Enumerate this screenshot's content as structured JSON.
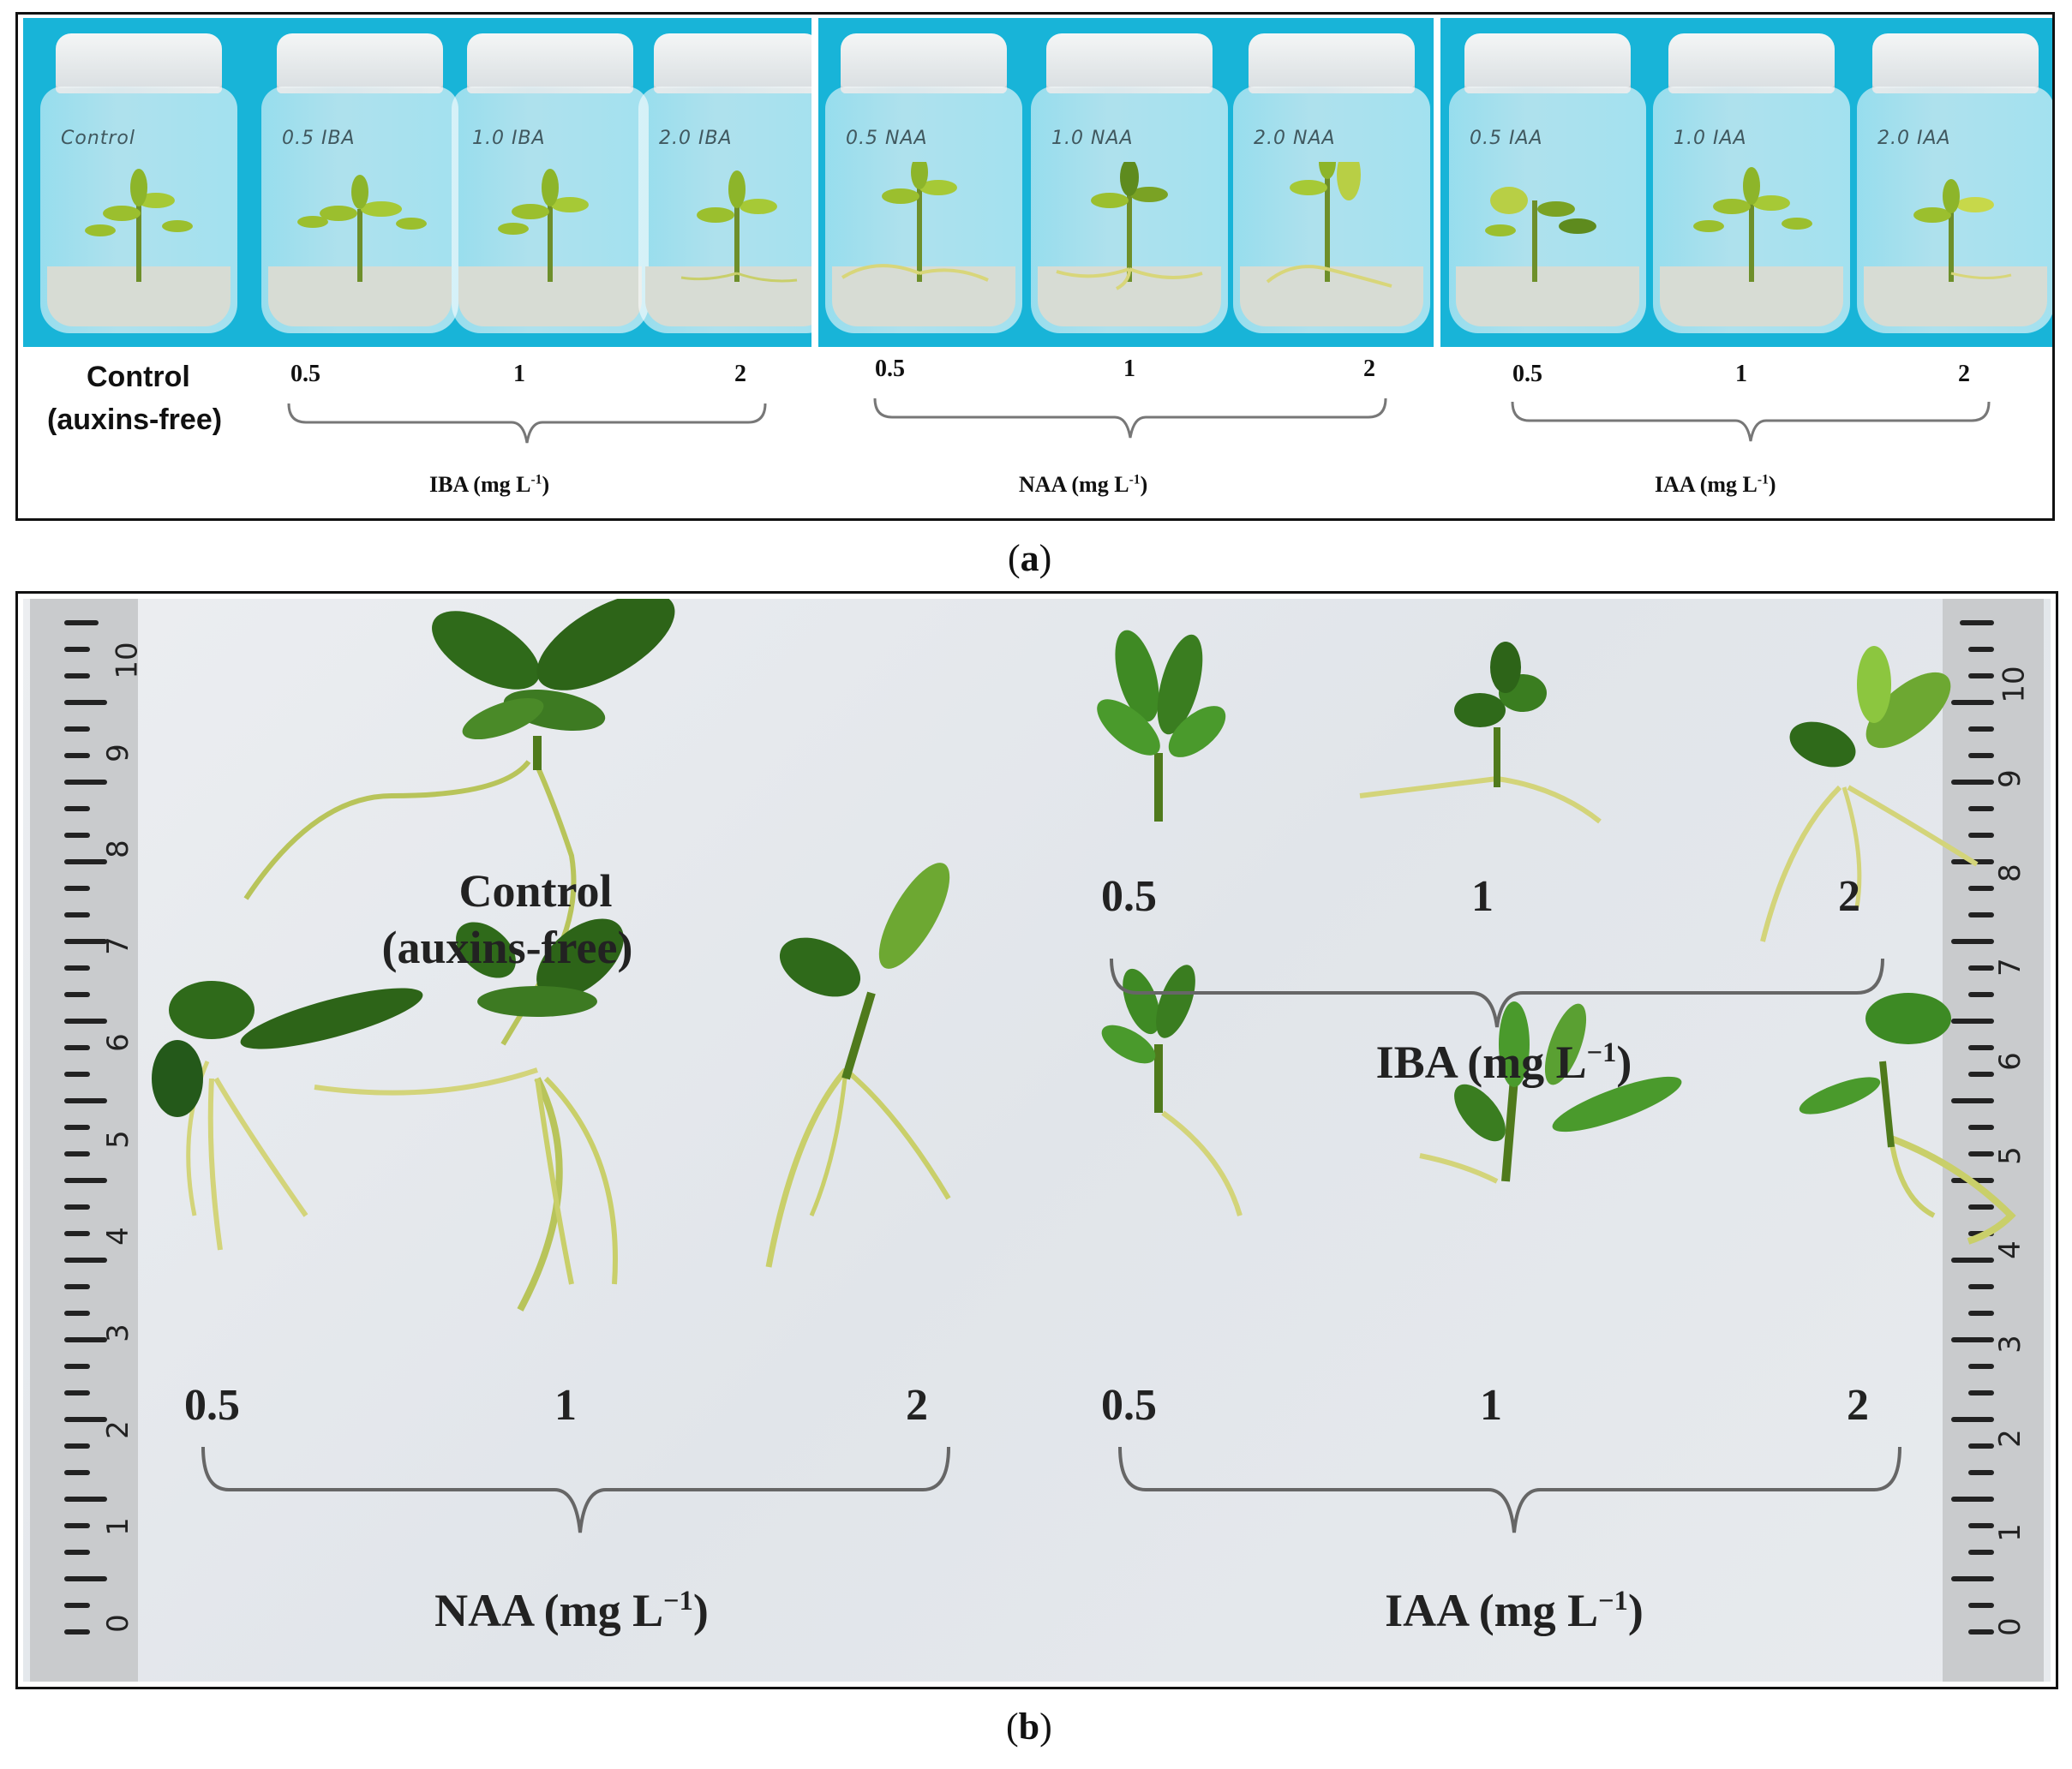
{
  "panel_a": {
    "jar_labels": [
      "Control",
      "0.5 IBA",
      "1.0 IBA",
      "2.0 IBA",
      "0.5 NAA",
      "1.0 NAA",
      "2.0 NAA",
      "0.5 IAA",
      "1.0 IAA",
      "2.0 IAA"
    ],
    "control_line1": "Control",
    "control_line2": "(auxins-free)",
    "iba": {
      "c1": "0.5",
      "c2": "1",
      "c3": "2",
      "group": "IBA (mg L",
      "sup": "-1",
      "close": ")"
    },
    "naa": {
      "c1": "0.5",
      "c2": "1",
      "c3": "2",
      "group": "NAA (mg L",
      "sup": "-1",
      "close": ")"
    },
    "iaa": {
      "c1": "0.5",
      "c2": "1",
      "c3": "2",
      "group": "IAA (mg L",
      "sup": "-1",
      "close": ")"
    },
    "caption_pre": "(",
    "caption_letter": "a",
    "caption_post": ")"
  },
  "panel_b": {
    "control_line1": "Control",
    "control_line2": "(auxins-free)",
    "iba": {
      "c1": "0.5",
      "c2": "1",
      "c3": "2",
      "group": "IBA (mg L",
      "sup": "−1",
      "close": ")"
    },
    "naa": {
      "c1": "0.5",
      "c2": "1",
      "c3": "2",
      "group": "NAA (mg L",
      "sup": "−1",
      "close": ")"
    },
    "iaa": {
      "c1": "0.5",
      "c2": "1",
      "c3": "2",
      "group": "IAA (mg L",
      "sup": "−1",
      "close": ")"
    },
    "ruler_numbers": [
      "10",
      "9",
      "8",
      "7",
      "6",
      "5",
      "4",
      "3",
      "2",
      "1",
      "0"
    ],
    "caption_pre": "(",
    "caption_letter": "b",
    "caption_post": ")"
  },
  "colors": {
    "backdrop_blue": "#18b4d8",
    "leaf_green": "#3f7a1e",
    "root_yellow": "#c9cf6a",
    "paper": "#e6e9ed",
    "ruler": "#c9cbcd"
  }
}
